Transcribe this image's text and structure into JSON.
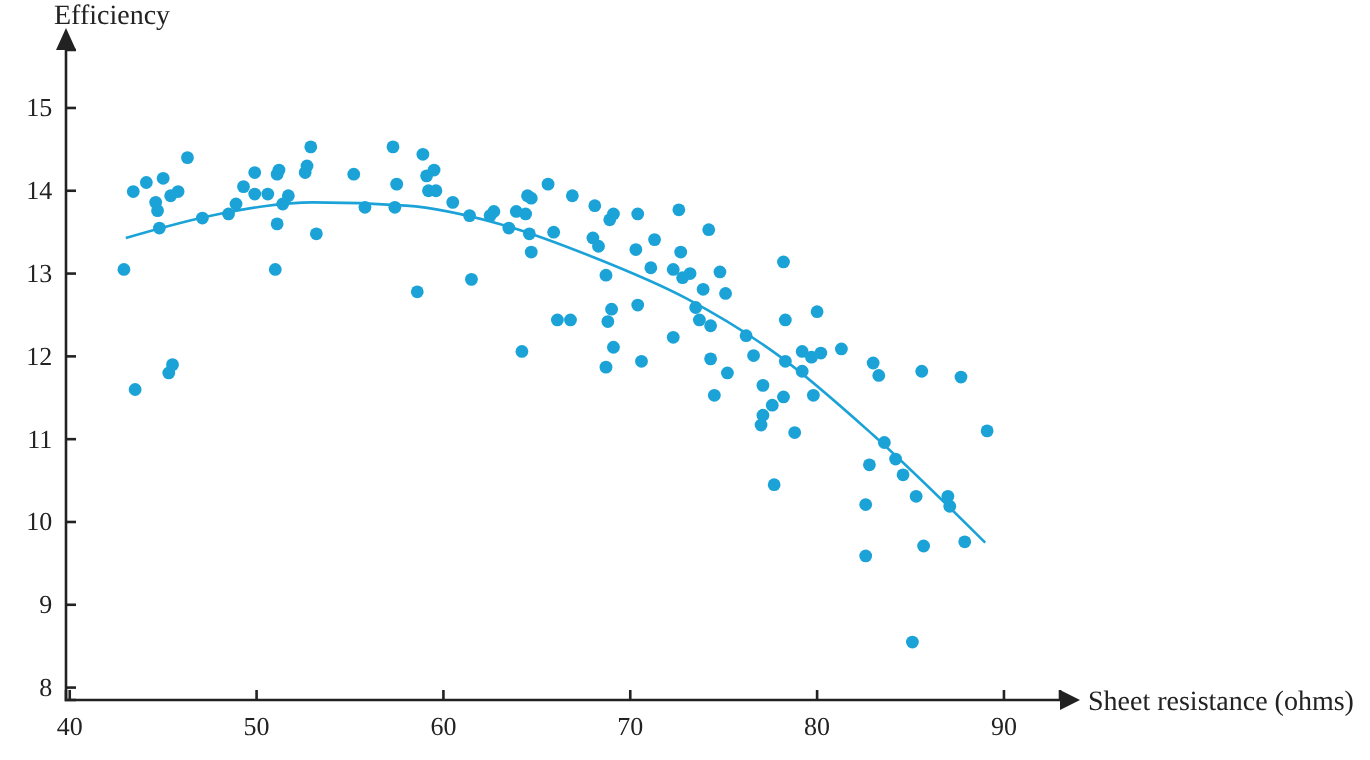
{
  "chart_data": {
    "type": "scatter",
    "xlabel": "Sheet resistance (ohms)",
    "ylabel": "Efficiency",
    "xlim": [
      39.8,
      93
    ],
    "ylim": [
      7.85,
      15.7
    ],
    "xticks": [
      40,
      50,
      60,
      70,
      80,
      90
    ],
    "yticks": [
      8,
      9,
      10,
      11,
      12,
      13,
      14,
      15
    ],
    "grid": false,
    "series": [
      {
        "marker": "circle",
        "color": "#1ba3d8",
        "x": [
          42.9,
          43.5,
          43.4,
          44.1,
          44.6,
          44.7,
          44.8,
          45.0,
          45.3,
          45.5,
          45.4,
          45.8,
          46.3,
          47.1,
          48.5,
          48.9,
          49.3,
          49.9,
          49.9,
          50.6,
          51.0,
          51.1,
          51.1,
          51.2,
          51.4,
          51.7,
          52.6,
          52.7,
          52.9,
          53.2,
          55.2,
          55.8,
          57.3,
          57.5,
          57.4,
          58.6,
          58.9,
          59.1,
          59.5,
          59.2,
          59.6,
          60.5,
          61.4,
          61.5,
          62.5,
          62.7,
          63.5,
          63.9,
          64.2,
          64.4,
          64.5,
          64.7,
          64.6,
          64.7,
          65.6,
          65.9,
          66.1,
          66.8,
          66.9,
          68.1,
          68.0,
          68.3,
          68.9,
          69.1,
          68.7,
          69.0,
          68.8,
          69.1,
          68.7,
          70.4,
          70.3,
          70.4,
          70.6,
          71.3,
          71.1,
          72.6,
          72.7,
          72.3,
          72.8,
          73.2,
          72.3,
          74.2,
          73.9,
          74.8,
          75.1,
          73.5,
          73.7,
          74.3,
          74.3,
          74.5,
          75.2,
          76.2,
          76.6,
          77.1,
          77.1,
          77.6,
          78.2,
          78.2,
          78.3,
          78.3,
          79.2,
          79.2,
          79.7,
          79.8,
          80.2,
          80.0,
          81.3,
          83.0,
          83.3,
          85.6,
          87.7,
          77.0,
          77.7,
          78.8,
          82.8,
          82.6,
          82.6,
          83.6,
          84.2,
          84.6,
          85.3,
          85.1,
          85.7,
          87.0,
          87.1,
          87.9,
          89.1
        ],
        "values": [
          13.05,
          11.6,
          13.99,
          14.1,
          13.86,
          13.76,
          13.55,
          14.15,
          11.8,
          11.9,
          13.94,
          13.99,
          14.4,
          13.67,
          13.72,
          13.84,
          14.05,
          14.22,
          13.96,
          13.96,
          13.05,
          13.6,
          14.2,
          14.25,
          13.84,
          13.94,
          14.22,
          14.3,
          14.53,
          13.48,
          14.2,
          13.8,
          14.53,
          14.08,
          13.8,
          12.78,
          14.44,
          14.18,
          14.25,
          14.0,
          14.0,
          13.86,
          13.7,
          12.93,
          13.7,
          13.75,
          13.55,
          13.75,
          12.06,
          13.72,
          13.94,
          13.91,
          13.48,
          13.26,
          14.08,
          13.5,
          12.44,
          12.44,
          13.94,
          13.82,
          13.43,
          13.33,
          13.65,
          13.72,
          12.98,
          12.57,
          12.42,
          12.11,
          11.87,
          13.72,
          13.29,
          12.62,
          11.94,
          13.41,
          13.07,
          13.77,
          13.26,
          13.05,
          12.95,
          13.0,
          12.23,
          13.53,
          12.81,
          13.02,
          12.76,
          12.59,
          12.44,
          12.37,
          11.97,
          11.53,
          11.8,
          12.25,
          12.01,
          11.65,
          11.29,
          11.41,
          11.51,
          13.14,
          12.44,
          11.94,
          12.06,
          11.82,
          11.99,
          11.53,
          12.04,
          12.54,
          12.09,
          11.92,
          11.77,
          11.82,
          11.75,
          11.17,
          10.45,
          11.08,
          10.69,
          10.21,
          9.59,
          10.96,
          10.76,
          10.57,
          10.31,
          8.55,
          9.71,
          10.31,
          10.19,
          9.76,
          11.1
        ]
      },
      {
        "type": "line",
        "color": "#1ba3d8",
        "x": [
          43,
          48,
          53,
          58,
          63,
          68,
          73,
          78,
          83,
          89
        ],
        "values": [
          13.43,
          13.72,
          13.86,
          13.82,
          13.6,
          13.2,
          12.7,
          12.0,
          11.05,
          9.75
        ]
      }
    ]
  }
}
